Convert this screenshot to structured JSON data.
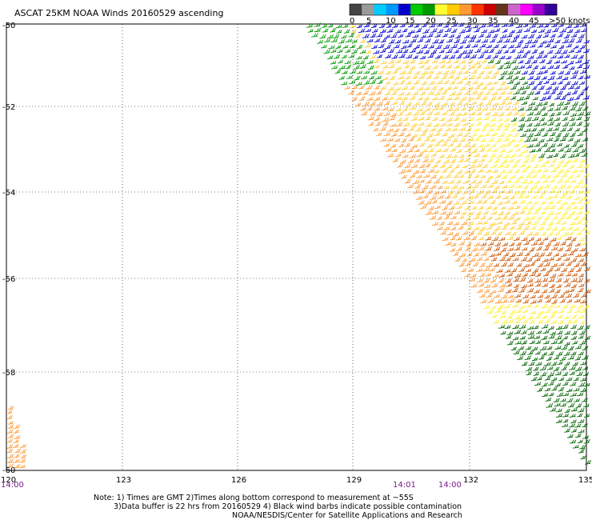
{
  "title": "ASCAT 25KM NOAA Winds 20160529 ascending",
  "legend": {
    "labels": [
      "0",
      "5",
      "10",
      "15",
      "20",
      "25",
      "30",
      "35",
      "40",
      "45",
      ">50 knots"
    ],
    "colors": [
      "#444444",
      "#9a9a9a",
      "#00ccff",
      "#0099ff",
      "#0000cc",
      "#00cc00",
      "#009900",
      "#ffff33",
      "#ffcc00",
      "#ff9933",
      "#ff3300",
      "#cc0000",
      "#66331a",
      "#cc66cc",
      "#ff00ff",
      "#9900cc",
      "#330099"
    ]
  },
  "axes": {
    "lat_labels": [
      "-50",
      "-52",
      "-54",
      "-56",
      "-58",
      "-60"
    ],
    "lon_labels": [
      "120",
      "123",
      "126",
      "129",
      "132",
      "135"
    ]
  },
  "times": [
    "14:00",
    "14:01",
    "14:00"
  ],
  "notes": [
    "Note: 1) Times are GMT 2)Times along bottom correspond to measurement at ~55S",
    "3)Data buffer is 22 hrs from 20160529 4) Black wind barbs indicate possible contamination",
    "NOAA/NESDIS/Center for Satellite Applications and Research"
  ],
  "swath_colors": {
    "blue": "#0000cc",
    "cyan": "#0099ff",
    "green": "#009900",
    "light_green": "#33cc33",
    "yellow": "#ffee33",
    "gold": "#ffcc33",
    "orange": "#ff9933",
    "brown": "#cc5500",
    "dark_green": "#006600",
    "edge_orange": "#ff9933"
  }
}
